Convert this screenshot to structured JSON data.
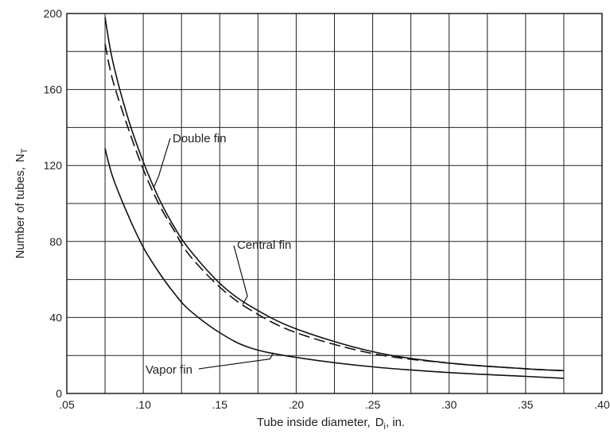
{
  "chart_data": {
    "type": "line",
    "title": "",
    "xlabel": "Tube inside diameter,",
    "xlabel_symbol": "D",
    "xlabel_symbol_sub": "i",
    "xlabel_units": ", in.",
    "ylabel": "Number of tubes,",
    "ylabel_symbol": "N",
    "ylabel_symbol_sub": "T",
    "xlim": [
      0.05,
      0.4
    ],
    "ylim": [
      0,
      200
    ],
    "grid": true,
    "x_tick_values": [
      0.05,
      0.1,
      0.15,
      0.2,
      0.25,
      0.3,
      0.35,
      0.4
    ],
    "x_tick_labels": [
      ".05",
      ".10",
      ".15",
      ".20",
      ".25",
      ".30",
      ".35",
      ".40"
    ],
    "y_tick_values": [
      0,
      40,
      80,
      120,
      160,
      200
    ],
    "y_tick_labels": [
      "0",
      "40",
      "80",
      "120",
      "160",
      "200"
    ],
    "series": [
      {
        "name": "Double fin",
        "style": "solid",
        "x": [
          0.075,
          0.08,
          0.09,
          0.1,
          0.11,
          0.12,
          0.13,
          0.15,
          0.17,
          0.2,
          0.25,
          0.3,
          0.35,
          0.375
        ],
        "y": [
          198,
          175,
          145,
          122,
          103,
          88,
          76,
          58,
          46,
          34,
          22,
          16,
          13,
          12
        ]
      },
      {
        "name": "Central fin",
        "style": "dashed",
        "x": [
          0.075,
          0.08,
          0.09,
          0.1,
          0.11,
          0.12,
          0.13,
          0.15,
          0.17,
          0.2,
          0.25,
          0.3,
          0.35,
          0.375
        ],
        "y": [
          184,
          165,
          140,
          118,
          100,
          86,
          73,
          56,
          44,
          32,
          21,
          16,
          13,
          12
        ]
      },
      {
        "name": "Vapor fin",
        "style": "solid",
        "x": [
          0.075,
          0.08,
          0.09,
          0.1,
          0.11,
          0.12,
          0.13,
          0.15,
          0.17,
          0.2,
          0.25,
          0.3,
          0.35,
          0.375
        ],
        "y": [
          129,
          114,
          94,
          77,
          64,
          53,
          44,
          32,
          24,
          19,
          14,
          11,
          9,
          8
        ]
      }
    ],
    "annotations": [
      "Double fin",
      "Central fin",
      "Vapor fin"
    ],
    "colors": {
      "line": "#111111",
      "grid": "#222222"
    }
  }
}
